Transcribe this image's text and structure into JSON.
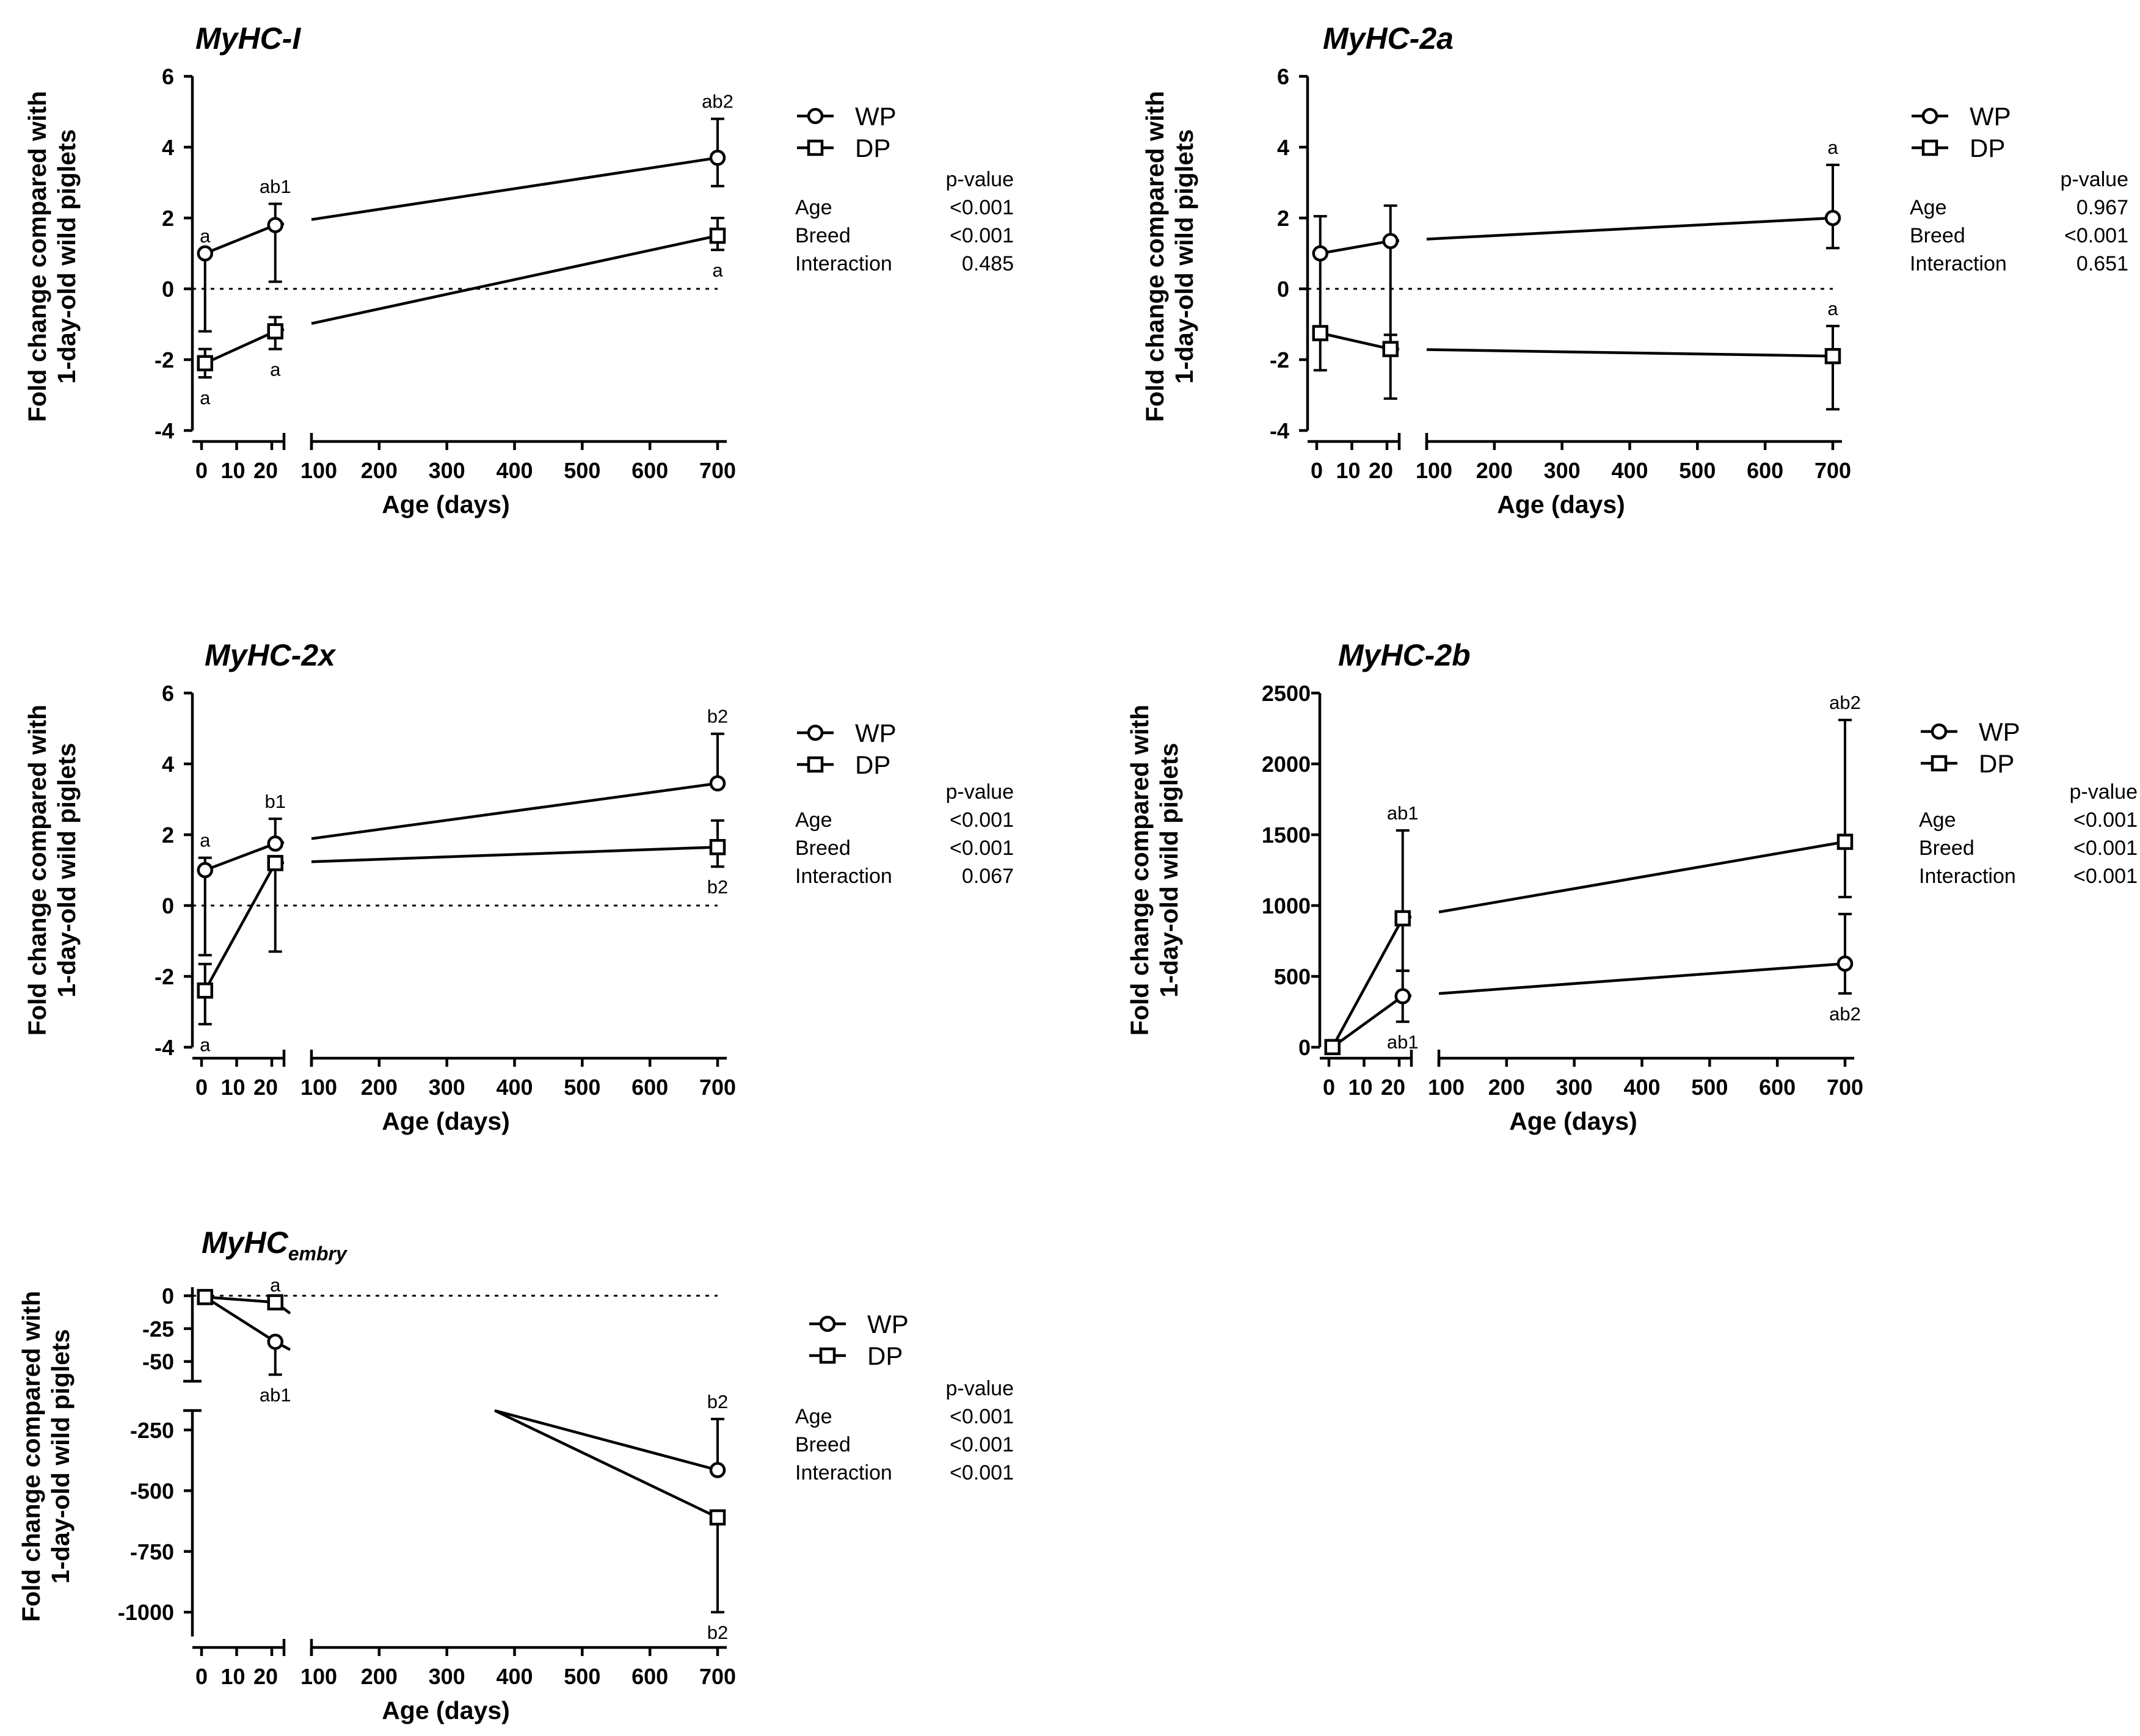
{
  "ylabel_line1": "Fold change compared with",
  "ylabel_line2": "1-day-old wild piglets",
  "xlabel": "Age (days)",
  "legend": {
    "wp": "WP",
    "dp": "DP"
  },
  "stats_header": "p-value",
  "stats_labels": [
    "Age",
    "Breed",
    "Interaction"
  ],
  "chart_data": [
    {
      "type": "line",
      "title": "MyHC-I",
      "xlabel": "Age (days)",
      "ylabel": "Fold change compared with 1-day-old wild piglets",
      "x_ticks": [
        "0",
        "10",
        "20",
        "100",
        "200",
        "300",
        "400",
        "500",
        "600",
        "700"
      ],
      "x_ranges": [
        [
          0,
          25
        ],
        [
          100,
          700
        ]
      ],
      "ylim": [
        -4,
        6
      ],
      "y_ticks": [
        "6",
        "4",
        "2",
        "0",
        "-2",
        "-4"
      ],
      "series": [
        {
          "name": "WP",
          "marker": "circle",
          "x": [
            1,
            21,
            700
          ],
          "y": [
            1.0,
            1.8,
            3.7
          ],
          "err_low": [
            2.2,
            1.6,
            0.8
          ],
          "err_high": [
            0,
            0.6,
            1.1
          ],
          "labels": [
            "a",
            "ab1",
            "ab2"
          ],
          "label_side": [
            "above",
            "above",
            "above"
          ]
        },
        {
          "name": "DP",
          "marker": "square",
          "x": [
            1,
            21,
            700
          ],
          "y": [
            -2.1,
            -1.2,
            1.5
          ],
          "err_low": [
            0.4,
            0.5,
            0.4
          ],
          "err_high": [
            0.4,
            0.4,
            0.5
          ],
          "labels": [
            "a",
            "a",
            "a"
          ],
          "label_side": [
            "below",
            "below",
            "below"
          ]
        }
      ],
      "stats": {
        "Age": "<0.001",
        "Breed": "<0.001",
        "Interaction": "0.485"
      }
    },
    {
      "type": "line",
      "title": "MyHC-2a",
      "xlabel": "Age (days)",
      "ylabel": "Fold change compared with 1-day-old wild piglets",
      "x_ticks": [
        "0",
        "10",
        "20",
        "100",
        "200",
        "300",
        "400",
        "500",
        "600",
        "700"
      ],
      "x_ranges": [
        [
          0,
          25
        ],
        [
          100,
          700
        ]
      ],
      "ylim": [
        -4,
        6
      ],
      "y_ticks": [
        "6",
        "4",
        "2",
        "0",
        "-2",
        "-4"
      ],
      "series": [
        {
          "name": "WP",
          "marker": "circle",
          "x": [
            1,
            21,
            700
          ],
          "y": [
            1.0,
            1.35,
            2.0
          ],
          "err_low": [
            3.3,
            2.95,
            0.85
          ],
          "err_high": [
            1.05,
            1.0,
            1.5
          ],
          "labels": [
            "",
            "",
            "a"
          ],
          "label_side": [
            "above",
            "above",
            "above"
          ]
        },
        {
          "name": "DP",
          "marker": "square",
          "x": [
            1,
            21,
            700
          ],
          "y": [
            -1.25,
            -1.7,
            -1.9
          ],
          "err_low": [
            0,
            1.4,
            1.5
          ],
          "err_high": [
            0,
            0.4,
            0.85
          ],
          "labels": [
            "",
            "",
            "a"
          ],
          "label_side": [
            "above",
            "above",
            "above"
          ]
        }
      ],
      "stats": {
        "Age": "0.967",
        "Breed": "<0.001",
        "Interaction": "0.651"
      }
    },
    {
      "type": "line",
      "title": "MyHC-2x",
      "xlabel": "Age (days)",
      "ylabel": "Fold change compared with 1-day-old wild piglets",
      "x_ticks": [
        "0",
        "10",
        "20",
        "100",
        "200",
        "300",
        "400",
        "500",
        "600",
        "700"
      ],
      "x_ranges": [
        [
          0,
          25
        ],
        [
          100,
          700
        ]
      ],
      "ylim": [
        -4,
        6
      ],
      "y_ticks": [
        "6",
        "4",
        "2",
        "0",
        "-2",
        "-4"
      ],
      "series": [
        {
          "name": "WP",
          "marker": "circle",
          "x": [
            1,
            21,
            700
          ],
          "y": [
            1.0,
            1.75,
            3.45
          ],
          "err_low": [
            2.4,
            0,
            0
          ],
          "err_high": [
            0.35,
            0.7,
            1.4
          ],
          "labels": [
            "a",
            "b1",
            "b2"
          ],
          "label_side": [
            "above",
            "above",
            "above"
          ]
        },
        {
          "name": "DP",
          "marker": "square",
          "x": [
            1,
            21,
            700
          ],
          "y": [
            -2.4,
            1.2,
            1.65
          ],
          "err_low": [
            0.95,
            2.5,
            0.55
          ],
          "err_high": [
            0.75,
            0,
            0.75
          ],
          "labels": [
            "a",
            "",
            "b2"
          ],
          "label_side": [
            "below",
            "below",
            "below"
          ]
        }
      ],
      "stats": {
        "Age": "<0.001",
        "Breed": "<0.001",
        "Interaction": "0.067"
      }
    },
    {
      "type": "line",
      "title": "MyHC-2b",
      "xlabel": "Age (days)",
      "ylabel": "Fold change compared with 1-day-old wild piglets",
      "x_ticks": [
        "0",
        "10",
        "20",
        "100",
        "200",
        "300",
        "400",
        "500",
        "600",
        "700"
      ],
      "x_ranges": [
        [
          0,
          25
        ],
        [
          100,
          700
        ]
      ],
      "ylim": [
        0,
        2500
      ],
      "y_ticks": [
        "2500",
        "2000",
        "1500",
        "1000",
        "500",
        "0"
      ],
      "series": [
        {
          "name": "WP",
          "marker": "circle",
          "x": [
            1,
            21,
            700
          ],
          "y": [
            1,
            360,
            590
          ],
          "err_low": [
            0,
            180,
            210
          ],
          "err_high": [
            0,
            180,
            350
          ],
          "labels": [
            "",
            "ab1",
            "ab2"
          ],
          "label_side": [
            "below",
            "below",
            "below"
          ]
        },
        {
          "name": "DP",
          "marker": "square",
          "x": [
            1,
            21,
            700
          ],
          "y": [
            1,
            910,
            1450
          ],
          "err_low": [
            0,
            370,
            390
          ],
          "err_high": [
            0,
            620,
            860
          ],
          "labels": [
            "",
            "ab1",
            "ab2"
          ],
          "label_side": [
            "above",
            "above",
            "above"
          ]
        }
      ],
      "stats": {
        "Age": "<0.001",
        "Breed": "<0.001",
        "Interaction": "<0.001"
      }
    },
    {
      "type": "line",
      "title": "MyHC",
      "title_subscript": "embry",
      "xlabel": "Age (days)",
      "ylabel": "Fold change compared with 1-day-old wild piglets",
      "x_ticks": [
        "0",
        "10",
        "20",
        "100",
        "200",
        "300",
        "400",
        "500",
        "600",
        "700"
      ],
      "x_ranges": [
        [
          0,
          25
        ],
        [
          100,
          700
        ]
      ],
      "y_segments": [
        {
          "range": [
            -65,
            0
          ],
          "ticks": [
            "0",
            "-25",
            "-50"
          ]
        },
        {
          "range": [
            -1100,
            -170
          ],
          "ticks": [
            "-250",
            "-500",
            "-750",
            "-1000"
          ]
        }
      ],
      "series": [
        {
          "name": "WP",
          "marker": "circle",
          "x": [
            1,
            21,
            700
          ],
          "y": [
            -1,
            -35,
            -415
          ],
          "err_low": [
            0,
            25,
            0
          ],
          "err_high": [
            0,
            0,
            210
          ],
          "labels": [
            "",
            "ab1",
            "b2"
          ],
          "label_side": [
            "below",
            "below",
            "above"
          ]
        },
        {
          "name": "DP",
          "marker": "square",
          "x": [
            1,
            21,
            700
          ],
          "y": [
            -1,
            -5,
            -610
          ],
          "err_low": [
            0,
            0,
            390
          ],
          "err_high": [
            0,
            0,
            0
          ],
          "labels": [
            "",
            "a",
            "b2"
          ],
          "label_side": [
            "above",
            "above",
            "below"
          ]
        }
      ],
      "stats": {
        "Age": "<0.001",
        "Breed": "<0.001",
        "Interaction": "<0.001"
      }
    }
  ]
}
